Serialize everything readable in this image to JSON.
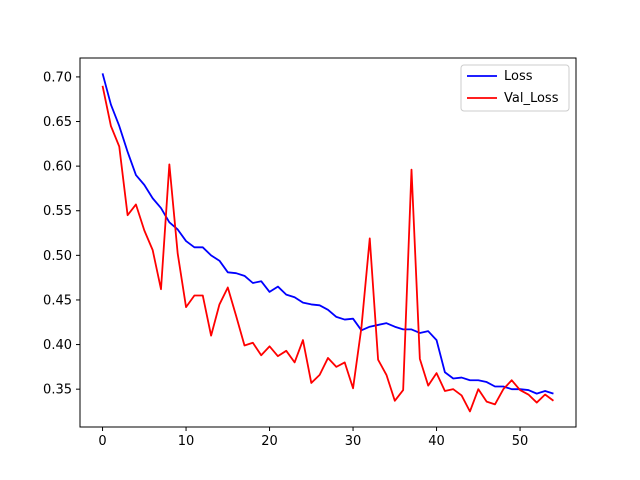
{
  "chart_data": {
    "type": "line",
    "title": "",
    "xlabel": "",
    "ylabel": "",
    "xlim": [
      -2.7,
      56.7
    ],
    "ylim": [
      0.3076,
      0.7212
    ],
    "xticks": [
      0,
      10,
      20,
      30,
      40,
      50
    ],
    "yticks": [
      0.35,
      0.4,
      0.45,
      0.5,
      0.55,
      0.6,
      0.65,
      0.7
    ],
    "grid": false,
    "legend_position": "top-right",
    "series": [
      {
        "name": "Loss",
        "color": "#0000ff",
        "x": [
          0,
          1,
          2,
          3,
          4,
          5,
          6,
          7,
          8,
          9,
          10,
          11,
          12,
          13,
          14,
          15,
          16,
          17,
          18,
          19,
          20,
          21,
          22,
          23,
          24,
          25,
          26,
          27,
          28,
          29,
          30,
          31,
          32,
          33,
          34,
          35,
          36,
          37,
          38,
          39,
          40,
          41,
          42,
          43,
          44,
          45,
          46,
          47,
          48,
          49,
          50,
          51,
          52,
          53,
          54
        ],
        "values": [
          0.704,
          0.669,
          0.645,
          0.616,
          0.59,
          0.579,
          0.564,
          0.553,
          0.537,
          0.529,
          0.516,
          0.509,
          0.509,
          0.5,
          0.494,
          0.481,
          0.48,
          0.477,
          0.469,
          0.471,
          0.459,
          0.465,
          0.456,
          0.453,
          0.447,
          0.445,
          0.444,
          0.439,
          0.431,
          0.428,
          0.429,
          0.416,
          0.42,
          0.422,
          0.424,
          0.42,
          0.417,
          0.417,
          0.413,
          0.415,
          0.405,
          0.369,
          0.362,
          0.363,
          0.36,
          0.36,
          0.358,
          0.353,
          0.353,
          0.35,
          0.35,
          0.349,
          0.345,
          0.348,
          0.345
        ]
      },
      {
        "name": "Val_Loss",
        "color": "#ff0000",
        "x": [
          0,
          1,
          2,
          3,
          4,
          5,
          6,
          7,
          8,
          9,
          10,
          11,
          12,
          13,
          14,
          15,
          16,
          17,
          18,
          19,
          20,
          21,
          22,
          23,
          24,
          25,
          26,
          27,
          28,
          29,
          30,
          31,
          32,
          33,
          34,
          35,
          36,
          37,
          38,
          39,
          40,
          41,
          42,
          43,
          44,
          45,
          46,
          47,
          48,
          49,
          50,
          51,
          52,
          53,
          54
        ],
        "values": [
          0.69,
          0.645,
          0.622,
          0.545,
          0.557,
          0.528,
          0.506,
          0.462,
          0.602,
          0.502,
          0.442,
          0.455,
          0.455,
          0.41,
          0.445,
          0.464,
          0.432,
          0.399,
          0.402,
          0.388,
          0.398,
          0.387,
          0.393,
          0.38,
          0.405,
          0.357,
          0.366,
          0.385,
          0.375,
          0.38,
          0.351,
          0.419,
          0.519,
          0.383,
          0.366,
          0.337,
          0.349,
          0.596,
          0.384,
          0.354,
          0.368,
          0.348,
          0.35,
          0.343,
          0.325,
          0.35,
          0.336,
          0.333,
          0.35,
          0.36,
          0.349,
          0.344,
          0.335,
          0.344,
          0.337
        ]
      }
    ]
  }
}
